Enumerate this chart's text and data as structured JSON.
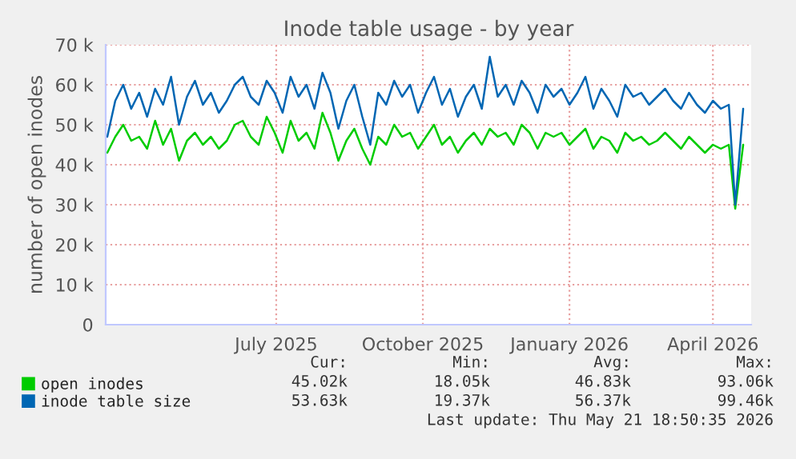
{
  "chart_data": {
    "type": "line",
    "title": "Inode table usage - by year",
    "ylabel": "number of open inodes",
    "x": [
      "2025-03-17",
      "2025-03-22",
      "2025-03-27",
      "2025-04-01",
      "2025-04-06",
      "2025-04-11",
      "2025-04-16",
      "2025-04-21",
      "2025-04-26",
      "2025-05-01",
      "2025-05-06",
      "2025-05-11",
      "2025-05-16",
      "2025-05-21",
      "2025-05-26",
      "2025-05-31",
      "2025-06-05",
      "2025-06-10",
      "2025-06-15",
      "2025-06-20",
      "2025-06-25",
      "2025-06-30",
      "2025-07-05",
      "2025-07-10",
      "2025-07-15",
      "2025-07-20",
      "2025-07-25",
      "2025-07-30",
      "2025-08-04",
      "2025-08-09",
      "2025-08-14",
      "2025-08-19",
      "2025-08-24",
      "2025-08-29",
      "2025-09-03",
      "2025-09-08",
      "2025-09-13",
      "2025-09-18",
      "2025-09-23",
      "2025-09-28",
      "2025-10-03",
      "2025-10-08",
      "2025-10-13",
      "2025-10-18",
      "2025-10-23",
      "2025-10-28",
      "2025-11-02",
      "2025-11-07",
      "2025-11-12",
      "2025-11-17",
      "2025-11-22",
      "2025-11-27",
      "2025-12-02",
      "2025-12-07",
      "2025-12-12",
      "2025-12-17",
      "2025-12-22",
      "2025-12-27",
      "2026-01-01",
      "2026-01-06",
      "2026-01-11",
      "2026-01-16",
      "2026-01-21",
      "2026-01-26",
      "2026-01-31",
      "2026-02-05",
      "2026-02-10",
      "2026-02-15",
      "2026-02-20",
      "2026-02-25",
      "2026-03-02",
      "2026-03-07",
      "2026-03-12",
      "2026-03-17",
      "2026-03-22",
      "2026-03-27",
      "2026-04-01",
      "2026-04-06",
      "2026-04-11",
      "2026-04-15",
      "2026-04-20"
    ],
    "series": [
      {
        "name": "open inodes",
        "color": "#00cc00",
        "values": [
          43000,
          47000,
          50000,
          46000,
          47000,
          44000,
          51000,
          45000,
          49000,
          41000,
          46000,
          48000,
          45000,
          47000,
          44000,
          46000,
          50000,
          51000,
          47000,
          45000,
          52000,
          48000,
          43000,
          51000,
          46000,
          48000,
          44000,
          53000,
          48000,
          41000,
          46000,
          49000,
          44000,
          40000,
          47000,
          45000,
          50000,
          47000,
          48000,
          44000,
          47000,
          50000,
          45000,
          47000,
          43000,
          46000,
          48000,
          45000,
          49000,
          47000,
          48000,
          45000,
          50000,
          48000,
          44000,
          48000,
          47000,
          48000,
          45000,
          47000,
          49000,
          44000,
          47000,
          46000,
          43000,
          48000,
          46000,
          47000,
          45000,
          46000,
          48000,
          46000,
          44000,
          47000,
          45000,
          43000,
          45000,
          44000,
          45000,
          29000,
          45000
        ]
      },
      {
        "name": "inode table size",
        "color": "#0066b3",
        "values": [
          47000,
          56000,
          60000,
          54000,
          58000,
          52000,
          59000,
          55000,
          62000,
          50000,
          57000,
          61000,
          55000,
          58000,
          53000,
          56000,
          60000,
          62000,
          57000,
          55000,
          61000,
          58000,
          53000,
          62000,
          57000,
          60000,
          54000,
          63000,
          58000,
          49000,
          56000,
          60000,
          52000,
          45000,
          58000,
          55000,
          61000,
          57000,
          60000,
          53000,
          58000,
          62000,
          55000,
          59000,
          52000,
          57000,
          60000,
          54000,
          67000,
          57000,
          60000,
          55000,
          61000,
          58000,
          53000,
          60000,
          57000,
          59000,
          55000,
          58000,
          62000,
          54000,
          59000,
          56000,
          52000,
          60000,
          57000,
          58000,
          55000,
          57000,
          59000,
          56000,
          54000,
          58000,
          55000,
          53000,
          56000,
          54000,
          55000,
          30000,
          54000
        ]
      }
    ],
    "xlim": [
      "2025-03-16",
      "2026-04-25"
    ],
    "xticks": [
      {
        "value": "2025-07-01",
        "label": "July 2025"
      },
      {
        "value": "2025-10-01",
        "label": "October 2025"
      },
      {
        "value": "2026-01-01",
        "label": "January 2026"
      },
      {
        "value": "2026-04-01",
        "label": "April 2026"
      }
    ],
    "ylim": [
      0,
      70000
    ],
    "yticks": [
      0,
      {
        "value": 10000,
        "label": "10 k"
      },
      {
        "value": 20000,
        "label": "20 k"
      },
      {
        "value": 30000,
        "label": "30 k"
      },
      {
        "value": 40000,
        "label": "40 k"
      },
      {
        "value": 50000,
        "label": "50 k"
      },
      {
        "value": 60000,
        "label": "60 k"
      },
      {
        "value": 70000,
        "label": "70 k"
      }
    ],
    "grid": true,
    "legend": "bottom",
    "marker": "none",
    "line_style": "solid",
    "annotations": [
      "Cur:",
      "Min:",
      "Avg:",
      "Max:",
      "45.02k",
      "18.05k",
      "46.83k",
      "93.06k",
      "53.63k",
      "19.37k",
      "56.37k",
      "99.46k",
      "Last update: Thu May 21 18:50:35 2026"
    ]
  }
}
